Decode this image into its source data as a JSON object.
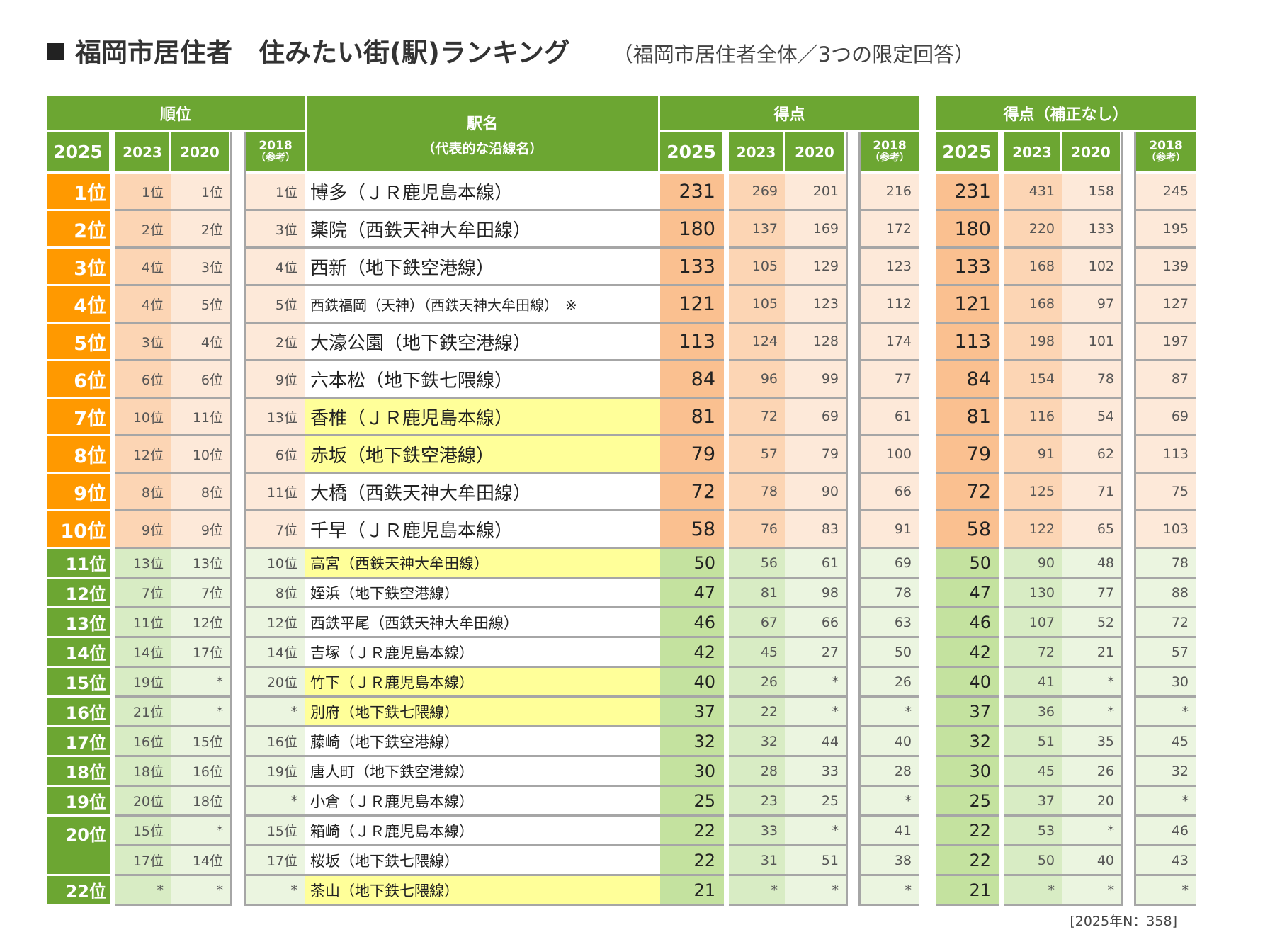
{
  "title": {
    "main": "福岡市居住者　住みたい街(駅)ランキング",
    "sub": "（福岡市居住者全体／3つの限定回答）"
  },
  "colors": {
    "header_green": "#6ca632",
    "top10_rank": "#ff9900",
    "top10_score": "#fac090",
    "top10_light": "#fcd5b4",
    "top10_lighter": "#fde9d9",
    "green_rank": "#6ca632",
    "green_score": "#c4e29f",
    "green_light": "#d8ecc4",
    "green_lighter": "#ebf5e0",
    "highlight_yellow": "#ffff99"
  },
  "headers": {
    "rank_group": "順位",
    "station": "駅名",
    "station_sub": "（代表的な沿線名）",
    "score_group": "得点",
    "raw_group": "得点（補正なし）",
    "y2025": "2025",
    "y2023": "2023",
    "y2020": "2020",
    "y2018": "2018",
    "ref": "（参考）"
  },
  "rows": [
    {
      "rank": "1位",
      "r23": "1位",
      "r20": "1位",
      "r18": "1位",
      "station": "博多（ＪＲ鹿児島本線）",
      "s25": "231",
      "s23": "269",
      "s20": "201",
      "s18": "216",
      "u25": "231",
      "u23": "431",
      "u20": "158",
      "u18": "245",
      "hl": false
    },
    {
      "rank": "2位",
      "r23": "2位",
      "r20": "2位",
      "r18": "3位",
      "station": "薬院（西鉄天神大牟田線）",
      "s25": "180",
      "s23": "137",
      "s20": "169",
      "s18": "172",
      "u25": "180",
      "u23": "220",
      "u20": "133",
      "u18": "195",
      "hl": false
    },
    {
      "rank": "3位",
      "r23": "4位",
      "r20": "3位",
      "r18": "4位",
      "station": "西新（地下鉄空港線）",
      "s25": "133",
      "s23": "105",
      "s20": "129",
      "s18": "123",
      "u25": "133",
      "u23": "168",
      "u20": "102",
      "u18": "139",
      "hl": false
    },
    {
      "rank": "4位",
      "r23": "4位",
      "r20": "5位",
      "r18": "5位",
      "station": "西鉄福岡（天神）（西鉄天神大牟田線）　※",
      "s25": "121",
      "s23": "105",
      "s20": "123",
      "s18": "112",
      "u25": "121",
      "u23": "168",
      "u20": "97",
      "u18": "127",
      "hl": false,
      "small": true
    },
    {
      "rank": "5位",
      "r23": "3位",
      "r20": "4位",
      "r18": "2位",
      "station": "大濠公園（地下鉄空港線）",
      "s25": "113",
      "s23": "124",
      "s20": "128",
      "s18": "174",
      "u25": "113",
      "u23": "198",
      "u20": "101",
      "u18": "197",
      "hl": false
    },
    {
      "rank": "6位",
      "r23": "6位",
      "r20": "6位",
      "r18": "9位",
      "station": "六本松（地下鉄七隈線）",
      "s25": "84",
      "s23": "96",
      "s20": "99",
      "s18": "77",
      "u25": "84",
      "u23": "154",
      "u20": "78",
      "u18": "87",
      "hl": false
    },
    {
      "rank": "7位",
      "r23": "10位",
      "r20": "11位",
      "r18": "13位",
      "station": "香椎（ＪＲ鹿児島本線）",
      "s25": "81",
      "s23": "72",
      "s20": "69",
      "s18": "61",
      "u25": "81",
      "u23": "116",
      "u20": "54",
      "u18": "69",
      "hl": true
    },
    {
      "rank": "8位",
      "r23": "12位",
      "r20": "10位",
      "r18": "6位",
      "station": "赤坂（地下鉄空港線）",
      "s25": "79",
      "s23": "57",
      "s20": "79",
      "s18": "100",
      "u25": "79",
      "u23": "91",
      "u20": "62",
      "u18": "113",
      "hl": true
    },
    {
      "rank": "9位",
      "r23": "8位",
      "r20": "8位",
      "r18": "11位",
      "station": "大橋（西鉄天神大牟田線）",
      "s25": "72",
      "s23": "78",
      "s20": "90",
      "s18": "66",
      "u25": "72",
      "u23": "125",
      "u20": "71",
      "u18": "75",
      "hl": false
    },
    {
      "rank": "10位",
      "r23": "9位",
      "r20": "9位",
      "r18": "7位",
      "station": "千早（ＪＲ鹿児島本線）",
      "s25": "58",
      "s23": "76",
      "s20": "83",
      "s18": "91",
      "u25": "58",
      "u23": "122",
      "u20": "65",
      "u18": "103",
      "hl": false
    },
    {
      "rank": "11位",
      "r23": "13位",
      "r20": "13位",
      "r18": "10位",
      "station": "高宮（西鉄天神大牟田線）",
      "s25": "50",
      "s23": "56",
      "s20": "61",
      "s18": "69",
      "u25": "50",
      "u23": "90",
      "u20": "48",
      "u18": "78",
      "hl": true
    },
    {
      "rank": "12位",
      "r23": "7位",
      "r20": "7位",
      "r18": "8位",
      "station": "姪浜（地下鉄空港線）",
      "s25": "47",
      "s23": "81",
      "s20": "98",
      "s18": "78",
      "u25": "47",
      "u23": "130",
      "u20": "77",
      "u18": "88",
      "hl": false
    },
    {
      "rank": "13位",
      "r23": "11位",
      "r20": "12位",
      "r18": "12位",
      "station": "西鉄平尾（西鉄天神大牟田線）",
      "s25": "46",
      "s23": "67",
      "s20": "66",
      "s18": "63",
      "u25": "46",
      "u23": "107",
      "u20": "52",
      "u18": "72",
      "hl": false
    },
    {
      "rank": "14位",
      "r23": "14位",
      "r20": "17位",
      "r18": "14位",
      "station": "吉塚（ＪＲ鹿児島本線）",
      "s25": "42",
      "s23": "45",
      "s20": "27",
      "s18": "50",
      "u25": "42",
      "u23": "72",
      "u20": "21",
      "u18": "57",
      "hl": false
    },
    {
      "rank": "15位",
      "r23": "19位",
      "r20": "*",
      "r18": "20位",
      "station": "竹下（ＪＲ鹿児島本線）",
      "s25": "40",
      "s23": "26",
      "s20": "*",
      "s18": "26",
      "u25": "40",
      "u23": "41",
      "u20": "*",
      "u18": "30",
      "hl": true
    },
    {
      "rank": "16位",
      "r23": "21位",
      "r20": "*",
      "r18": "*",
      "station": "別府（地下鉄七隈線）",
      "s25": "37",
      "s23": "22",
      "s20": "*",
      "s18": "*",
      "u25": "37",
      "u23": "36",
      "u20": "*",
      "u18": "*",
      "hl": true
    },
    {
      "rank": "17位",
      "r23": "16位",
      "r20": "15位",
      "r18": "16位",
      "station": "藤崎（地下鉄空港線）",
      "s25": "32",
      "s23": "32",
      "s20": "44",
      "s18": "40",
      "u25": "32",
      "u23": "51",
      "u20": "35",
      "u18": "45",
      "hl": false
    },
    {
      "rank": "18位",
      "r23": "18位",
      "r20": "16位",
      "r18": "19位",
      "station": "唐人町（地下鉄空港線）",
      "s25": "30",
      "s23": "28",
      "s20": "33",
      "s18": "28",
      "u25": "30",
      "u23": "45",
      "u20": "26",
      "u18": "32",
      "hl": false
    },
    {
      "rank": "19位",
      "r23": "20位",
      "r20": "18位",
      "r18": "*",
      "station": "小倉（ＪＲ鹿児島本線）",
      "s25": "25",
      "s23": "23",
      "s20": "25",
      "s18": "*",
      "u25": "25",
      "u23": "37",
      "u20": "20",
      "u18": "*",
      "hl": false
    },
    {
      "rank": "20位",
      "r23": "15位",
      "r20": "*",
      "r18": "15位",
      "station": "箱崎（ＪＲ鹿児島本線）",
      "s25": "22",
      "s23": "33",
      "s20": "*",
      "s18": "41",
      "u25": "22",
      "u23": "53",
      "u20": "*",
      "u18": "46",
      "hl": false
    },
    {
      "rank": "",
      "r23": "17位",
      "r20": "14位",
      "r18": "17位",
      "station": "桜坂（地下鉄七隈線）",
      "s25": "22",
      "s23": "31",
      "s20": "51",
      "s18": "38",
      "u25": "22",
      "u23": "50",
      "u20": "40",
      "u18": "43",
      "hl": false
    },
    {
      "rank": "22位",
      "r23": "*",
      "r20": "*",
      "r18": "*",
      "station": "茶山（地下鉄七隈線）",
      "s25": "21",
      "s23": "*",
      "s20": "*",
      "s18": "*",
      "u25": "21",
      "u23": "*",
      "u20": "*",
      "u18": "*",
      "hl": true
    }
  ],
  "footnote": "[2025年N：358]"
}
